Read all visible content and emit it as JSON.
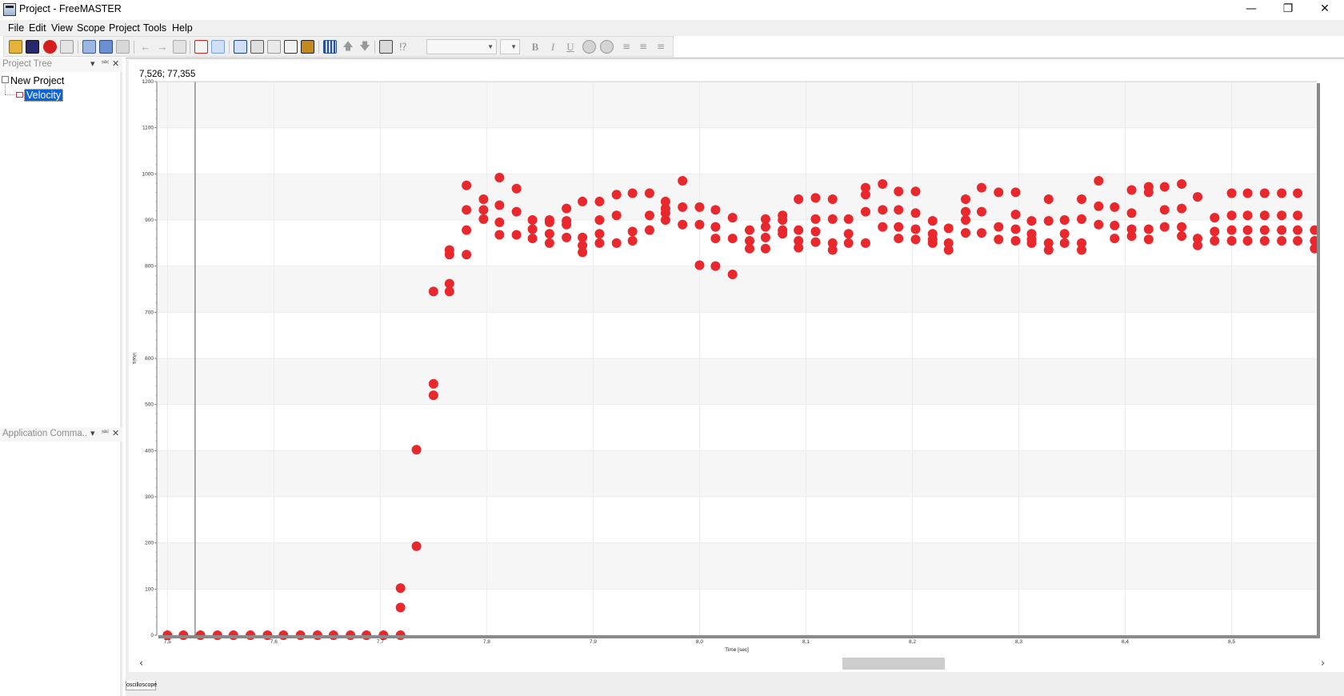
{
  "window": {
    "title": "Project - FreeMASTER",
    "controls": [
      "minimize",
      "restore",
      "close"
    ]
  },
  "menu": [
    "File",
    "Edit",
    "View",
    "Scope",
    "Project",
    "Tools",
    "Help"
  ],
  "toolbar": {
    "combo_value": "",
    "style_buttons": [
      "B",
      "I",
      "U"
    ]
  },
  "project_tree": {
    "title": "Project Tree",
    "root": "New Project",
    "child": "Velocity"
  },
  "app_commands": {
    "title": "Application Comma..."
  },
  "scope": {
    "cursor_readout": "7,526; 77,355",
    "tab_label": "oscilloscope"
  },
  "colors": {
    "series": "#e8282c",
    "selection": "#0a64d8"
  },
  "chart_data": {
    "type": "scatter",
    "xlabel": "Time [sec]",
    "ylabel": "iAxis",
    "xlim": [
      7.49,
      8.58
    ],
    "ylim": [
      0,
      1200
    ],
    "cursor_x": 7.526,
    "x_ticks": [
      7.5,
      7.6,
      7.7,
      7.8,
      7.9,
      8.0,
      8.1,
      8.2,
      8.3,
      8.4,
      8.5
    ],
    "x_tick_labels": [
      "7,5",
      "7,6",
      "7,7",
      "7,8",
      "7,9",
      "8,0",
      "8,1",
      "8,2",
      "8,3",
      "8,4",
      "8,5"
    ],
    "y_ticks": [
      0,
      100,
      200,
      300,
      400,
      500,
      600,
      700,
      800,
      900,
      1000,
      1100,
      1200
    ],
    "grid": true,
    "points": [
      [
        7.5,
        0
      ],
      [
        7.515,
        0
      ],
      [
        7.531,
        0
      ],
      [
        7.547,
        0
      ],
      [
        7.562,
        0
      ],
      [
        7.578,
        0
      ],
      [
        7.594,
        0
      ],
      [
        7.609,
        0
      ],
      [
        7.625,
        0
      ],
      [
        7.641,
        0
      ],
      [
        7.656,
        0
      ],
      [
        7.672,
        0
      ],
      [
        7.687,
        0
      ],
      [
        7.703,
        0
      ],
      [
        7.719,
        0
      ],
      [
        7.719,
        60
      ],
      [
        7.719,
        102
      ],
      [
        7.734,
        193
      ],
      [
        7.734,
        402
      ],
      [
        7.75,
        520
      ],
      [
        7.75,
        545
      ],
      [
        7.75,
        745
      ],
      [
        7.765,
        745
      ],
      [
        7.765,
        762
      ],
      [
        7.765,
        825
      ],
      [
        7.765,
        835
      ],
      [
        7.781,
        825
      ],
      [
        7.781,
        878
      ],
      [
        7.781,
        922
      ],
      [
        7.781,
        975
      ],
      [
        7.797,
        902
      ],
      [
        7.797,
        922
      ],
      [
        7.797,
        945
      ],
      [
        7.812,
        868
      ],
      [
        7.812,
        895
      ],
      [
        7.812,
        932
      ],
      [
        7.812,
        992
      ],
      [
        7.828,
        868
      ],
      [
        7.828,
        918
      ],
      [
        7.828,
        968
      ],
      [
        7.843,
        860
      ],
      [
        7.843,
        880
      ],
      [
        7.843,
        900
      ],
      [
        7.859,
        850
      ],
      [
        7.859,
        870
      ],
      [
        7.859,
        895
      ],
      [
        7.859,
        900
      ],
      [
        7.875,
        862
      ],
      [
        7.875,
        890
      ],
      [
        7.875,
        898
      ],
      [
        7.875,
        925
      ],
      [
        7.89,
        830
      ],
      [
        7.89,
        845
      ],
      [
        7.89,
        862
      ],
      [
        7.89,
        940
      ],
      [
        7.906,
        850
      ],
      [
        7.906,
        870
      ],
      [
        7.906,
        900
      ],
      [
        7.906,
        940
      ],
      [
        7.922,
        850
      ],
      [
        7.922,
        910
      ],
      [
        7.922,
        955
      ],
      [
        7.937,
        855
      ],
      [
        7.937,
        875
      ],
      [
        7.937,
        958
      ],
      [
        7.953,
        878
      ],
      [
        7.953,
        910
      ],
      [
        7.953,
        958
      ],
      [
        7.968,
        900
      ],
      [
        7.968,
        915
      ],
      [
        7.968,
        925
      ],
      [
        7.968,
        940
      ],
      [
        7.984,
        890
      ],
      [
        7.984,
        928
      ],
      [
        7.984,
        985
      ],
      [
        8.0,
        802
      ],
      [
        8.0,
        890
      ],
      [
        8.0,
        928
      ],
      [
        8.015,
        800
      ],
      [
        8.015,
        860
      ],
      [
        8.015,
        885
      ],
      [
        8.015,
        922
      ],
      [
        8.031,
        782
      ],
      [
        8.031,
        860
      ],
      [
        8.031,
        905
      ],
      [
        8.047,
        838
      ],
      [
        8.047,
        855
      ],
      [
        8.047,
        878
      ],
      [
        8.062,
        838
      ],
      [
        8.062,
        862
      ],
      [
        8.062,
        885
      ],
      [
        8.062,
        902
      ],
      [
        8.078,
        870
      ],
      [
        8.078,
        878
      ],
      [
        8.078,
        900
      ],
      [
        8.078,
        910
      ],
      [
        8.093,
        840
      ],
      [
        8.093,
        855
      ],
      [
        8.093,
        878
      ],
      [
        8.093,
        945
      ],
      [
        8.109,
        852
      ],
      [
        8.109,
        875
      ],
      [
        8.109,
        902
      ],
      [
        8.109,
        948
      ],
      [
        8.125,
        835
      ],
      [
        8.125,
        850
      ],
      [
        8.125,
        902
      ],
      [
        8.125,
        945
      ],
      [
        8.14,
        850
      ],
      [
        8.14,
        870
      ],
      [
        8.14,
        902
      ],
      [
        8.156,
        850
      ],
      [
        8.156,
        918
      ],
      [
        8.156,
        955
      ],
      [
        8.156,
        970
      ],
      [
        8.172,
        885
      ],
      [
        8.172,
        922
      ],
      [
        8.172,
        978
      ],
      [
        8.187,
        860
      ],
      [
        8.187,
        885
      ],
      [
        8.187,
        922
      ],
      [
        8.187,
        962
      ],
      [
        8.203,
        858
      ],
      [
        8.203,
        880
      ],
      [
        8.203,
        915
      ],
      [
        8.203,
        962
      ],
      [
        8.219,
        850
      ],
      [
        8.219,
        858
      ],
      [
        8.219,
        870
      ],
      [
        8.219,
        898
      ],
      [
        8.234,
        835
      ],
      [
        8.234,
        850
      ],
      [
        8.234,
        882
      ],
      [
        8.25,
        872
      ],
      [
        8.25,
        900
      ],
      [
        8.25,
        918
      ],
      [
        8.25,
        945
      ],
      [
        8.265,
        872
      ],
      [
        8.265,
        918
      ],
      [
        8.265,
        970
      ],
      [
        8.281,
        858
      ],
      [
        8.281,
        885
      ],
      [
        8.281,
        960
      ],
      [
        8.297,
        855
      ],
      [
        8.297,
        880
      ],
      [
        8.297,
        912
      ],
      [
        8.297,
        960
      ],
      [
        8.312,
        850
      ],
      [
        8.312,
        858
      ],
      [
        8.312,
        870
      ],
      [
        8.312,
        898
      ],
      [
        8.328,
        835
      ],
      [
        8.328,
        850
      ],
      [
        8.328,
        898
      ],
      [
        8.328,
        945
      ],
      [
        8.343,
        850
      ],
      [
        8.343,
        870
      ],
      [
        8.343,
        900
      ],
      [
        8.359,
        835
      ],
      [
        8.359,
        850
      ],
      [
        8.359,
        902
      ],
      [
        8.359,
        945
      ],
      [
        8.375,
        890
      ],
      [
        8.375,
        930
      ],
      [
        8.375,
        985
      ],
      [
        8.39,
        860
      ],
      [
        8.39,
        888
      ],
      [
        8.39,
        928
      ],
      [
        8.406,
        865
      ],
      [
        8.406,
        880
      ],
      [
        8.406,
        915
      ],
      [
        8.406,
        965
      ],
      [
        8.422,
        858
      ],
      [
        8.422,
        880
      ],
      [
        8.422,
        960
      ],
      [
        8.422,
        972
      ],
      [
        8.437,
        885
      ],
      [
        8.437,
        922
      ],
      [
        8.437,
        972
      ],
      [
        8.453,
        865
      ],
      [
        8.453,
        885
      ],
      [
        8.453,
        925
      ],
      [
        8.453,
        978
      ],
      [
        8.468,
        845
      ],
      [
        8.468,
        860
      ],
      [
        8.468,
        950
      ],
      [
        8.484,
        855
      ],
      [
        8.484,
        875
      ],
      [
        8.484,
        905
      ],
      [
        8.5,
        855
      ],
      [
        8.5,
        878
      ],
      [
        8.5,
        910
      ],
      [
        8.5,
        958
      ],
      [
        8.515,
        855
      ],
      [
        8.515,
        878
      ],
      [
        8.515,
        910
      ],
      [
        8.515,
        958
      ],
      [
        8.531,
        855
      ],
      [
        8.531,
        878
      ],
      [
        8.531,
        910
      ],
      [
        8.531,
        958
      ],
      [
        8.547,
        855
      ],
      [
        8.547,
        878
      ],
      [
        8.547,
        910
      ],
      [
        8.547,
        958
      ],
      [
        8.562,
        855
      ],
      [
        8.562,
        878
      ],
      [
        8.562,
        910
      ],
      [
        8.562,
        958
      ],
      [
        8.578,
        838
      ],
      [
        8.578,
        855
      ],
      [
        8.578,
        878
      ],
      [
        8.59,
        838
      ]
    ]
  }
}
